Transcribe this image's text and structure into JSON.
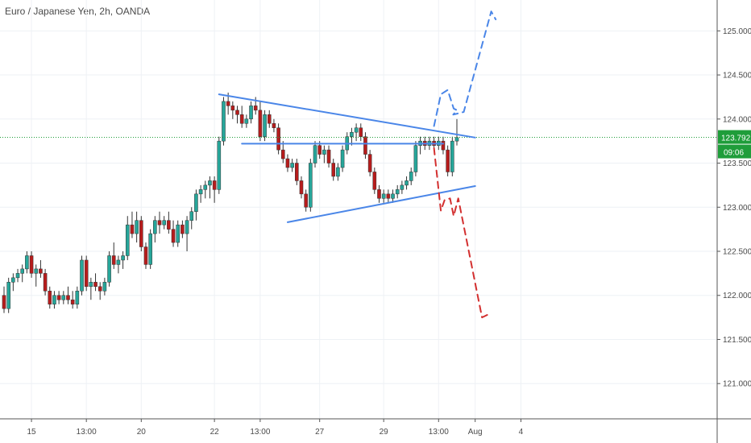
{
  "header": {
    "symbol_title": "Euro / Japanese Yen, 2h, OANDA"
  },
  "colors": {
    "bull": "#26a69a",
    "bear": "#b71c1c",
    "wick": "#333333",
    "trendline": "#4a86e8",
    "bull_path": "#4a86e8",
    "bear_path": "#d32f2f",
    "last_price_line": "#1f9d3a",
    "grid": "#eef1f5",
    "axis_line": "#555555"
  },
  "price_axis": {
    "ticks": [
      "125.000",
      "124.500",
      "124.000",
      "123.500",
      "123.000",
      "122.500",
      "122.000",
      "121.500",
      "121.000"
    ],
    "tick_values": [
      125.0,
      124.5,
      124.0,
      123.5,
      123.0,
      122.5,
      122.0,
      121.5,
      121.0
    ],
    "last_price_label": "123.792",
    "last_price_value": 123.792,
    "countdown_label": "09:06"
  },
  "time_axis": {
    "labels": [
      "15",
      "13:00",
      "20",
      "22",
      "13:00",
      "27",
      "29",
      "13:00",
      "Aug",
      "4"
    ],
    "label_bars": [
      6,
      18,
      30,
      46,
      56,
      69,
      83,
      95,
      103,
      113
    ]
  },
  "chart_data": {
    "type": "candlestick",
    "title": "Euro / Japanese Yen, 2h, OANDA",
    "ylim": [
      120.6,
      125.35
    ],
    "x_range_bars": [
      0,
      133
    ],
    "grid": true,
    "candles_ohlc": [
      [
        122.0,
        122.1,
        121.8,
        121.85
      ],
      [
        121.85,
        122.2,
        121.8,
        122.15
      ],
      [
        122.15,
        122.25,
        122.05,
        122.2
      ],
      [
        122.2,
        122.3,
        122.15,
        122.25
      ],
      [
        122.25,
        122.35,
        122.15,
        122.3
      ],
      [
        122.3,
        122.5,
        122.25,
        122.45
      ],
      [
        122.45,
        122.5,
        122.2,
        122.25
      ],
      [
        122.25,
        122.35,
        122.1,
        122.3
      ],
      [
        122.3,
        122.4,
        122.2,
        122.25
      ],
      [
        122.25,
        122.3,
        122.0,
        122.05
      ],
      [
        122.05,
        122.1,
        121.85,
        121.9
      ],
      [
        121.9,
        122.05,
        121.85,
        122.0
      ],
      [
        122.0,
        122.05,
        121.9,
        121.95
      ],
      [
        121.95,
        122.05,
        121.9,
        122.0
      ],
      [
        122.0,
        122.1,
        121.9,
        121.95
      ],
      [
        121.95,
        122.05,
        121.85,
        121.9
      ],
      [
        121.9,
        122.1,
        121.85,
        122.05
      ],
      [
        122.05,
        122.45,
        122.0,
        122.4
      ],
      [
        122.4,
        122.45,
        122.05,
        122.1
      ],
      [
        122.1,
        122.2,
        121.95,
        122.15
      ],
      [
        122.15,
        122.25,
        122.05,
        122.1
      ],
      [
        122.1,
        122.15,
        121.95,
        122.05
      ],
      [
        122.05,
        122.2,
        122.0,
        122.15
      ],
      [
        122.15,
        122.5,
        122.1,
        122.45
      ],
      [
        122.45,
        122.6,
        122.3,
        122.35
      ],
      [
        122.35,
        122.45,
        122.25,
        122.4
      ],
      [
        122.4,
        122.5,
        122.3,
        122.45
      ],
      [
        122.45,
        122.9,
        122.4,
        122.8
      ],
      [
        122.8,
        122.95,
        122.65,
        122.7
      ],
      [
        122.7,
        122.95,
        122.6,
        122.85
      ],
      [
        122.85,
        122.9,
        122.5,
        122.55
      ],
      [
        122.55,
        122.6,
        122.3,
        122.35
      ],
      [
        122.35,
        122.75,
        122.3,
        122.7
      ],
      [
        122.7,
        122.9,
        122.6,
        122.85
      ],
      [
        122.85,
        122.95,
        122.7,
        122.8
      ],
      [
        122.8,
        122.9,
        122.75,
        122.85
      ],
      [
        122.85,
        122.95,
        122.7,
        122.75
      ],
      [
        122.75,
        122.85,
        122.55,
        122.6
      ],
      [
        122.6,
        122.85,
        122.55,
        122.8
      ],
      [
        122.8,
        122.85,
        122.65,
        122.7
      ],
      [
        122.7,
        122.9,
        122.5,
        122.85
      ],
      [
        122.85,
        123.0,
        122.75,
        122.95
      ],
      [
        122.95,
        123.2,
        122.85,
        123.15
      ],
      [
        123.15,
        123.25,
        123.05,
        123.2
      ],
      [
        123.2,
        123.3,
        123.1,
        123.25
      ],
      [
        123.25,
        123.35,
        123.1,
        123.3
      ],
      [
        123.3,
        123.35,
        123.05,
        123.2
      ],
      [
        123.2,
        123.8,
        123.15,
        123.75
      ],
      [
        123.75,
        124.25,
        123.7,
        124.2
      ],
      [
        124.2,
        124.3,
        124.05,
        124.15
      ],
      [
        124.15,
        124.2,
        124.0,
        124.1
      ],
      [
        124.1,
        124.15,
        123.95,
        124.05
      ],
      [
        124.05,
        124.15,
        123.9,
        123.95
      ],
      [
        123.95,
        124.05,
        123.9,
        124.0
      ],
      [
        124.0,
        124.2,
        123.95,
        124.15
      ],
      [
        124.15,
        124.25,
        124.05,
        124.1
      ],
      [
        124.1,
        124.2,
        123.75,
        123.8
      ],
      [
        123.8,
        124.1,
        123.75,
        124.05
      ],
      [
        124.05,
        124.1,
        123.9,
        123.95
      ],
      [
        123.95,
        124.0,
        123.85,
        123.9
      ],
      [
        123.9,
        123.95,
        123.6,
        123.65
      ],
      [
        123.65,
        123.75,
        123.5,
        123.55
      ],
      [
        123.55,
        123.6,
        123.4,
        123.45
      ],
      [
        123.45,
        123.55,
        123.4,
        123.5
      ],
      [
        123.5,
        123.55,
        123.25,
        123.3
      ],
      [
        123.3,
        123.35,
        123.1,
        123.15
      ],
      [
        123.15,
        123.2,
        122.95,
        123.0
      ],
      [
        123.0,
        123.55,
        122.95,
        123.5
      ],
      [
        123.5,
        123.75,
        123.45,
        123.7
      ],
      [
        123.7,
        123.75,
        123.55,
        123.6
      ],
      [
        123.6,
        123.7,
        123.5,
        123.65
      ],
      [
        123.65,
        123.7,
        123.45,
        123.5
      ],
      [
        123.5,
        123.55,
        123.3,
        123.35
      ],
      [
        123.35,
        123.5,
        123.3,
        123.45
      ],
      [
        123.45,
        123.7,
        123.4,
        123.65
      ],
      [
        123.65,
        123.85,
        123.6,
        123.8
      ],
      [
        123.8,
        123.9,
        123.7,
        123.85
      ],
      [
        123.85,
        123.95,
        123.75,
        123.9
      ],
      [
        123.9,
        123.95,
        123.75,
        123.8
      ],
      [
        123.8,
        123.85,
        123.55,
        123.6
      ],
      [
        123.6,
        123.65,
        123.35,
        123.4
      ],
      [
        123.4,
        123.45,
        123.15,
        123.2
      ],
      [
        123.2,
        123.25,
        123.05,
        123.1
      ],
      [
        123.1,
        123.2,
        123.05,
        123.15
      ],
      [
        123.15,
        123.2,
        123.05,
        123.1
      ],
      [
        123.1,
        123.2,
        123.05,
        123.15
      ],
      [
        123.15,
        123.25,
        123.1,
        123.2
      ],
      [
        123.2,
        123.3,
        123.15,
        123.25
      ],
      [
        123.25,
        123.35,
        123.2,
        123.3
      ],
      [
        123.3,
        123.45,
        123.25,
        123.4
      ],
      [
        123.4,
        123.75,
        123.35,
        123.7
      ],
      [
        123.7,
        123.8,
        123.6,
        123.75
      ],
      [
        123.75,
        123.8,
        123.65,
        123.7
      ],
      [
        123.7,
        123.8,
        123.65,
        123.75
      ],
      [
        123.75,
        123.8,
        123.65,
        123.7
      ],
      [
        123.7,
        123.8,
        123.65,
        123.75
      ],
      [
        123.75,
        123.8,
        123.6,
        123.65
      ],
      [
        123.65,
        123.7,
        123.35,
        123.4
      ],
      [
        123.4,
        123.8,
        123.35,
        123.75
      ],
      [
        123.75,
        124.0,
        123.7,
        123.79
      ]
    ],
    "annotations": {
      "descending_trendline": [
        [
          47,
          124.28
        ],
        [
          103,
          123.79
        ]
      ],
      "ascending_trendline": [
        [
          62,
          122.83
        ],
        [
          103,
          123.24
        ]
      ],
      "neckline": [
        [
          52,
          123.72
        ],
        [
          96,
          123.72
        ]
      ],
      "bull_projection": [
        [
          94,
          123.92
        ],
        [
          95.5,
          124.28
        ],
        [
          97,
          124.33
        ],
        [
          98.3,
          124.12
        ],
        [
          99,
          124.1
        ],
        [
          98.2,
          124.05
        ],
        [
          100.5,
          124.08
        ],
        [
          106.5,
          125.22
        ],
        [
          107.5,
          125.13
        ]
      ],
      "bear_projection": [
        [
          94,
          123.67
        ],
        [
          95.5,
          122.96
        ],
        [
          96.3,
          123.08
        ],
        [
          97.5,
          123.1
        ],
        [
          98.3,
          122.9
        ],
        [
          99.3,
          123.1
        ],
        [
          104.5,
          121.75
        ],
        [
          106.5,
          121.8
        ]
      ]
    }
  }
}
